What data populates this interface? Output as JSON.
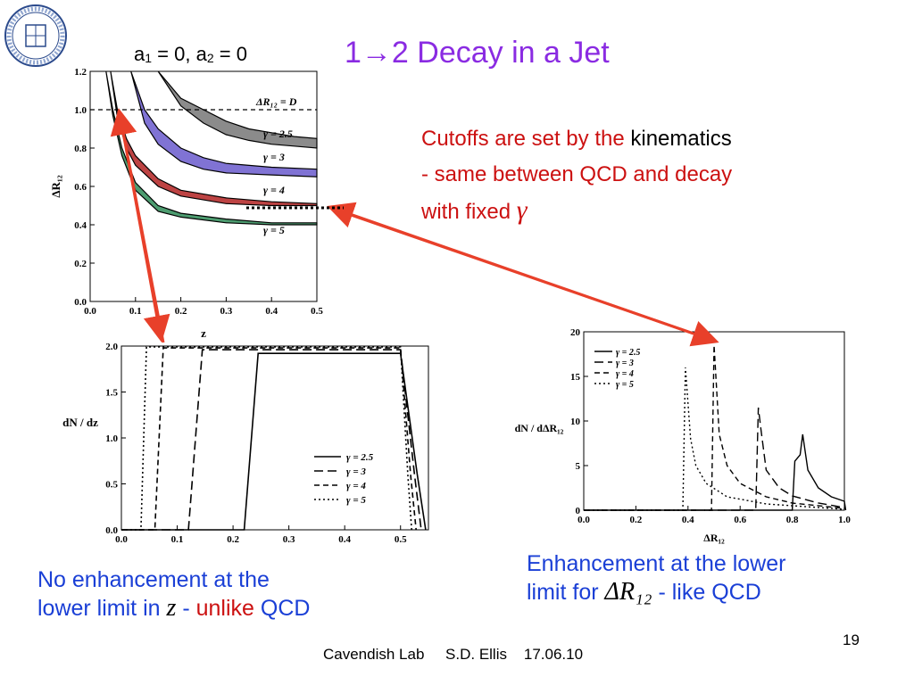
{
  "slide": {
    "param_text": {
      "a": "a",
      "s1": "1",
      "eq1": " = 0, a",
      "s2": "2",
      "eq2": " = 0"
    },
    "title": "1→2 Decay in a Jet",
    "cutoffs": {
      "line1_red": "Cutoffs are set by the",
      "line1_black": "kinematics",
      "line2": "- same between QCD and decay",
      "line3": "with fixed",
      "gamma": "γ"
    },
    "enhancement": {
      "line1": "Enhancement at the lower",
      "line2_pre": "limit for",
      "math": "ΔR₁₂",
      "line2_post": "- like QCD"
    },
    "no_enhancement": {
      "line1": "No enhancement at the",
      "line2_pre": "lower limit in",
      "math": "z",
      "dash": " - ",
      "unlike": "unlike",
      "post": " QCD"
    },
    "footer": "Cavendish Lab     S.D. Ellis    17.06.10",
    "page_number": "19",
    "colors": {
      "title": "#8a2be2",
      "red": "#cc1111",
      "blue": "#1a3fd6",
      "arrow": "#e8402a"
    }
  },
  "chart_data": [
    {
      "type": "area",
      "xlabel": "z",
      "ylabel": "ΔR₁₂",
      "xlim": [
        0,
        0.5
      ],
      "ylim": [
        0,
        1.2
      ],
      "xticks": [
        "0.0",
        "0.1",
        "0.2",
        "0.3",
        "0.4",
        "0.5"
      ],
      "yticks": [
        "0.0",
        "0.2",
        "0.4",
        "0.6",
        "0.8",
        "1.0",
        "1.2"
      ],
      "reference_line": {
        "y": 1.0,
        "label": "ΔR₁₂ = D",
        "style": "dashed"
      },
      "series": [
        {
          "name": "γ = 2.5",
          "color": "#777777",
          "x": [
            0.15,
            0.2,
            0.25,
            0.3,
            0.35,
            0.4,
            0.45,
            0.5
          ],
          "upper": [
            1.2,
            1.06,
            1.0,
            0.94,
            0.9,
            0.88,
            0.86,
            0.85
          ],
          "lower": [
            1.2,
            1.02,
            0.93,
            0.87,
            0.84,
            0.82,
            0.81,
            0.8
          ]
        },
        {
          "name": "γ = 3",
          "color": "#6a5acd",
          "x": [
            0.09,
            0.12,
            0.15,
            0.2,
            0.25,
            0.3,
            0.4,
            0.5
          ],
          "upper": [
            1.2,
            1.0,
            0.9,
            0.8,
            0.75,
            0.72,
            0.7,
            0.69
          ],
          "lower": [
            1.2,
            0.93,
            0.82,
            0.73,
            0.69,
            0.67,
            0.66,
            0.65
          ]
        },
        {
          "name": "γ = 4",
          "color": "#b22222",
          "x": [
            0.045,
            0.06,
            0.08,
            0.1,
            0.15,
            0.2,
            0.3,
            0.4,
            0.5
          ],
          "upper": [
            1.2,
            1.0,
            0.85,
            0.76,
            0.64,
            0.58,
            0.54,
            0.52,
            0.51
          ],
          "lower": [
            1.2,
            0.96,
            0.8,
            0.71,
            0.6,
            0.55,
            0.51,
            0.5,
            0.5
          ]
        },
        {
          "name": "γ = 5",
          "color": "#2e8b57",
          "x": [
            0.035,
            0.05,
            0.07,
            0.1,
            0.15,
            0.2,
            0.3,
            0.4,
            0.5
          ],
          "upper": [
            1.2,
            1.0,
            0.8,
            0.62,
            0.5,
            0.46,
            0.43,
            0.41,
            0.41
          ],
          "lower": [
            1.2,
            0.97,
            0.76,
            0.58,
            0.47,
            0.44,
            0.41,
            0.4,
            0.4
          ]
        }
      ]
    },
    {
      "type": "line",
      "xlabel": "z",
      "ylabel": "dN / dz",
      "xlim": [
        0,
        0.55
      ],
      "ylim": [
        0,
        2.0
      ],
      "xticks": [
        "0.0",
        "0.1",
        "0.2",
        "0.3",
        "0.4",
        "0.5"
      ],
      "yticks": [
        "0.0",
        "0.5",
        "1.0",
        "1.5",
        "2.0"
      ],
      "legend": "right",
      "series": [
        {
          "name": "γ = 2.5",
          "dash": "solid",
          "x": [
            0,
            0.22,
            0.245,
            0.5,
            0.53,
            0.545
          ],
          "y": [
            0,
            0,
            1.92,
            1.92,
            0.6,
            0
          ]
        },
        {
          "name": "γ = 3",
          "dash": "long",
          "x": [
            0,
            0.12,
            0.145,
            0.5,
            0.525,
            0.537
          ],
          "y": [
            0,
            0,
            1.96,
            1.96,
            0.6,
            0
          ]
        },
        {
          "name": "γ = 4",
          "dash": "medium",
          "x": [
            0,
            0.06,
            0.075,
            0.5,
            0.518,
            0.528
          ],
          "y": [
            0,
            0,
            1.98,
            1.98,
            0.6,
            0
          ]
        },
        {
          "name": "γ = 5",
          "dash": "dotted",
          "x": [
            0,
            0.035,
            0.045,
            0.5,
            0.513,
            0.52
          ],
          "y": [
            0,
            0,
            1.99,
            1.99,
            0.6,
            0
          ]
        }
      ]
    },
    {
      "type": "line",
      "xlabel": "ΔR₁₂",
      "ylabel": "dN / dΔR₁₂",
      "xlim": [
        0,
        1.0
      ],
      "ylim": [
        0,
        20
      ],
      "xticks": [
        "0.0",
        "0.2",
        "0.4",
        "0.6",
        "0.8",
        "1.0"
      ],
      "yticks": [
        "0",
        "5",
        "10",
        "15",
        "20"
      ],
      "legend": "top-left",
      "series": [
        {
          "name": "γ = 2.5",
          "dash": "solid",
          "x": [
            0,
            0.8,
            0.81,
            0.83,
            0.84,
            0.86,
            0.9,
            0.95,
            1.0,
            1.005
          ],
          "y": [
            0,
            0,
            5.5,
            6.2,
            8.5,
            4.5,
            2.5,
            1.5,
            1.0,
            0
          ]
        },
        {
          "name": "γ = 3",
          "dash": "long",
          "x": [
            0,
            0.66,
            0.67,
            0.68,
            0.7,
            0.75,
            0.8,
            0.9,
            1.0
          ],
          "y": [
            0,
            0,
            11.5,
            9.0,
            4.5,
            2.5,
            1.6,
            0.8,
            0.3
          ]
        },
        {
          "name": "γ = 4",
          "dash": "medium",
          "x": [
            0,
            0.49,
            0.5,
            0.52,
            0.55,
            0.6,
            0.7,
            0.8,
            1.0
          ],
          "y": [
            0,
            0,
            18.5,
            8.5,
            5.0,
            3.0,
            1.5,
            0.8,
            0.2
          ]
        },
        {
          "name": "γ = 5",
          "dash": "dotted",
          "x": [
            0,
            0.38,
            0.39,
            0.41,
            0.43,
            0.47,
            0.55,
            0.7,
            1.0
          ],
          "y": [
            0,
            0,
            16.0,
            8.0,
            5.0,
            3.0,
            1.5,
            0.7,
            0.1
          ]
        }
      ]
    }
  ]
}
